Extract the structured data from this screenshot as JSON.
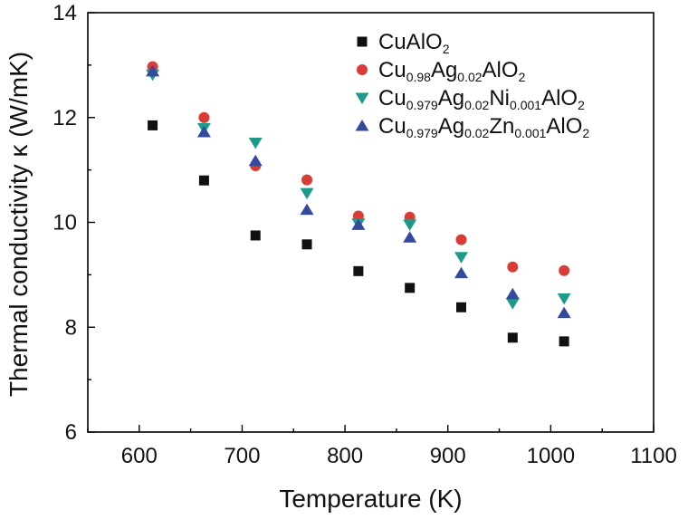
{
  "chart_data": {
    "type": "scatter",
    "title": "",
    "xlabel": "Temperature (K)",
    "ylabel": "Thermal conductivity κ (W/mK)",
    "xlim": [
      550,
      1100
    ],
    "ylim": [
      6,
      14
    ],
    "xticks": [
      "600",
      "700",
      "800",
      "900",
      "1000",
      "1100"
    ],
    "yticks": [
      "6",
      "8",
      "10",
      "12",
      "14"
    ],
    "grid": false,
    "legend_position": "top-right",
    "series": [
      {
        "name": "CuAlO2",
        "label_parts": [
          [
            "CuAlO",
            "n"
          ],
          [
            "2",
            "sub"
          ]
        ],
        "marker": "square",
        "color": "#111111",
        "x": [
          613,
          663,
          713,
          763,
          813,
          863,
          913,
          963,
          1013
        ],
        "y": [
          11.85,
          10.8,
          9.75,
          9.58,
          9.07,
          8.75,
          8.38,
          7.8,
          7.73
        ]
      },
      {
        "name": "Cu0.98Ag0.02AlO2",
        "label_parts": [
          [
            "Cu",
            "n"
          ],
          [
            "0.98",
            "sub"
          ],
          [
            "Ag",
            "n"
          ],
          [
            "0.02",
            "sub"
          ],
          [
            "AlO",
            "n"
          ],
          [
            "2",
            "sub"
          ]
        ],
        "marker": "circle",
        "color": "#d93b36",
        "x": [
          613,
          663,
          713,
          763,
          813,
          863,
          913,
          963,
          1013
        ],
        "y": [
          12.97,
          12.0,
          11.08,
          10.81,
          10.12,
          10.1,
          9.67,
          9.15,
          9.08
        ]
      },
      {
        "name": "Cu0.979Ag0.02Ni0.001AlO2",
        "label_parts": [
          [
            "Cu",
            "n"
          ],
          [
            "0.979",
            "sub"
          ],
          [
            "Ag",
            "n"
          ],
          [
            "0.02",
            "sub"
          ],
          [
            "Ni",
            "n"
          ],
          [
            "0.001",
            "sub"
          ],
          [
            "AlO",
            "n"
          ],
          [
            "2",
            "sub"
          ]
        ],
        "marker": "triangle-down",
        "color": "#1e9a8a",
        "x": [
          613,
          663,
          713,
          763,
          813,
          863,
          913,
          963,
          1013
        ],
        "y": [
          12.82,
          11.8,
          11.52,
          10.56,
          9.98,
          9.96,
          9.34,
          8.46,
          8.55
        ]
      },
      {
        "name": "Cu0.979Ag0.02Zn0.001AlO2",
        "label_parts": [
          [
            "Cu",
            "n"
          ],
          [
            "0.979",
            "sub"
          ],
          [
            "Ag",
            "n"
          ],
          [
            "0.02",
            "sub"
          ],
          [
            "Zn",
            "n"
          ],
          [
            "0.001",
            "sub"
          ],
          [
            "AlO",
            "n"
          ],
          [
            "2",
            "sub"
          ]
        ],
        "marker": "triangle-up",
        "color": "#334a9e",
        "x": [
          613,
          663,
          713,
          763,
          813,
          863,
          913,
          963,
          1013
        ],
        "y": [
          12.88,
          11.72,
          11.17,
          10.24,
          9.95,
          9.71,
          9.03,
          8.63,
          8.27
        ]
      }
    ]
  }
}
